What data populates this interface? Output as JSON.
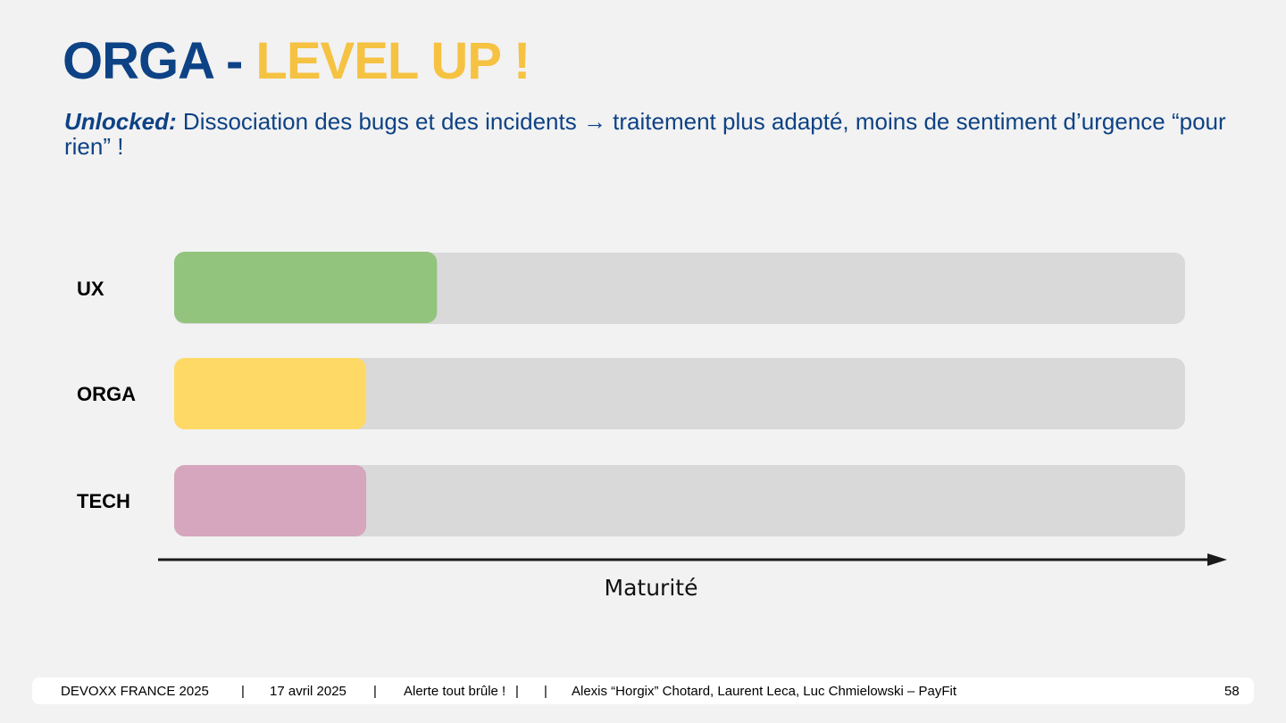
{
  "slide": {
    "title_part1": "ORGA",
    "title_sep": " - ",
    "title_part2": "LEVEL UP !",
    "subtitle_lead": "Unlocked:",
    "subtitle_text": " Dissociation des bugs et des incidents → traitement plus adapté, moins de sentiment d’urgence “pour rien” !",
    "colors": {
      "title_blue": "#0d4285",
      "title_yellow": "#f5c242"
    }
  },
  "chart_data": {
    "type": "bar",
    "orientation": "horizontal",
    "categories": [
      "UX",
      "ORGA",
      "TECH"
    ],
    "values": [
      0.26,
      0.19,
      0.19
    ],
    "xlabel": "Maturité",
    "xlim": [
      0,
      1
    ],
    "colors": [
      "#93c47d",
      "#ffd966",
      "#d5a6bd"
    ],
    "track_color": "#d9d9d9"
  },
  "footer": {
    "event": "DEVOXX FRANCE 2025",
    "sep": "|",
    "date": "17 avril 2025",
    "talk": "Alerte tout brûle !",
    "talk_sep": "|",
    "authors": "Alexis “Horgix” Chotard, Laurent Leca, Luc Chmielowski – PayFit",
    "page": "58"
  }
}
